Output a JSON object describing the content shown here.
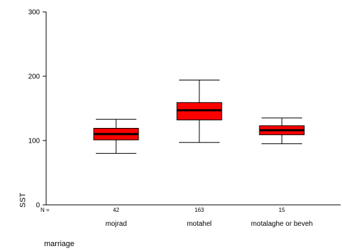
{
  "chart_data": {
    "type": "boxplot",
    "ylabel": "SST",
    "xlabel": "marriage",
    "ylim": [
      0,
      300
    ],
    "yticks": [
      0,
      100,
      200,
      300
    ],
    "n_prefix": "N =",
    "box_color": "#ff0000",
    "categories": [
      {
        "label": "mojrad",
        "n": "42",
        "min": 80,
        "q1": 101,
        "median": 110,
        "q3": 119,
        "max": 133
      },
      {
        "label": "motahel",
        "n": "163",
        "min": 97,
        "q1": 132,
        "median": 147,
        "q3": 159,
        "max": 194
      },
      {
        "label": "motalaghe or beveh",
        "n": "15",
        "min": 95,
        "q1": 109,
        "median": 116,
        "q3": 123,
        "max": 135
      }
    ]
  }
}
